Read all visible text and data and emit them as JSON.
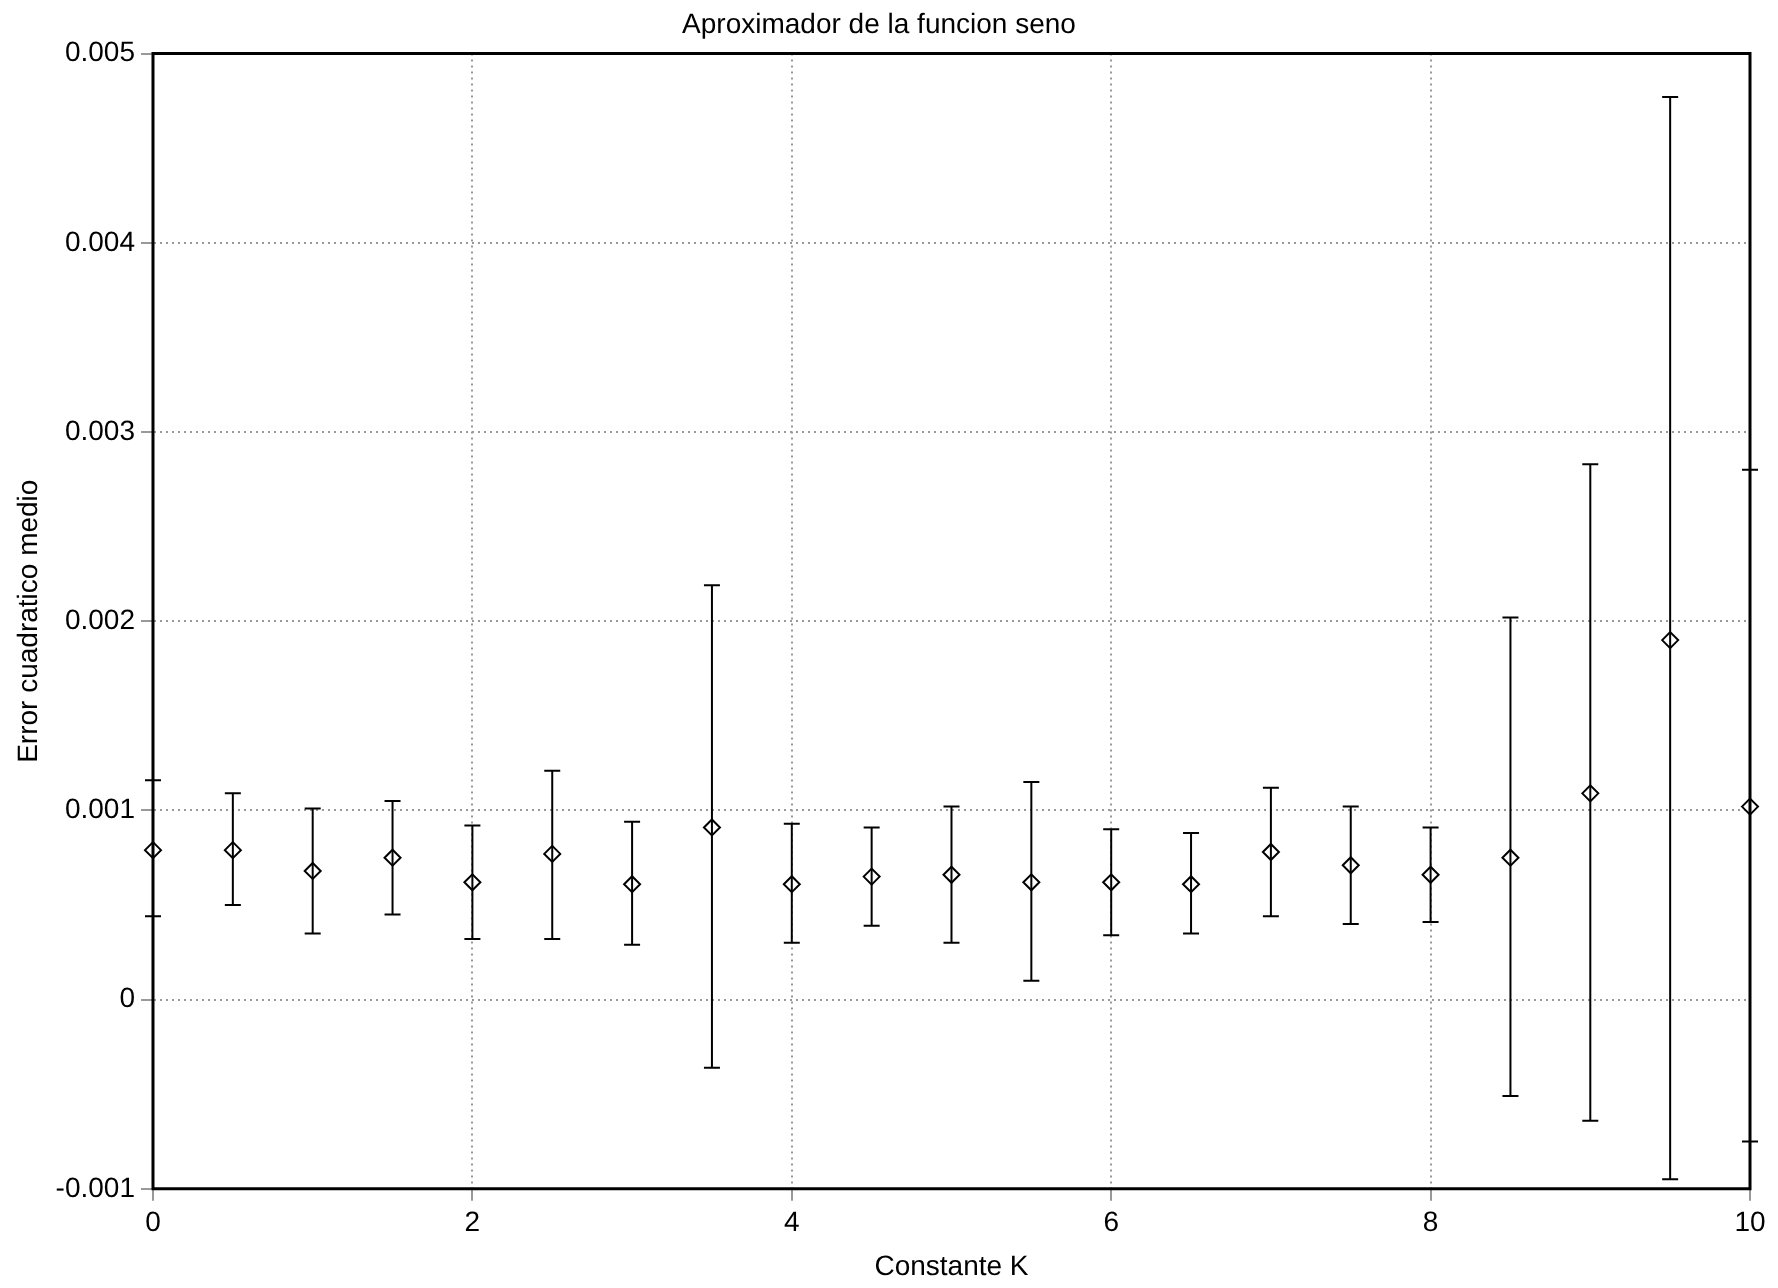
{
  "chart_data": {
    "type": "scatter",
    "title": "Aproximador de la funcion seno",
    "xlabel": "Constante K",
    "ylabel": "Error cuadratico medio",
    "x": [
      0,
      0.5,
      1,
      1.5,
      2,
      2.5,
      3,
      3.5,
      4,
      4.5,
      5,
      5.5,
      6,
      6.5,
      7,
      7.5,
      8,
      8.5,
      9,
      9.5,
      10
    ],
    "values": [
      0.00079,
      0.00079,
      0.00068,
      0.00075,
      0.00062,
      0.00077,
      0.00061,
      0.00091,
      0.00061,
      0.00065,
      0.00066,
      0.00062,
      0.00062,
      0.00061,
      0.00078,
      0.00071,
      0.00066,
      0.00075,
      0.00109,
      0.0019,
      0.00102
    ],
    "errors": [
      [
        0.00044,
        0.00116
      ],
      [
        0.0005,
        0.00109
      ],
      [
        0.00035,
        0.00101
      ],
      [
        0.00045,
        0.00105
      ],
      [
        0.00032,
        0.00092
      ],
      [
        0.00032,
        0.00121
      ],
      [
        0.00029,
        0.00094
      ],
      [
        -0.00036,
        0.00219
      ],
      [
        0.0003,
        0.00093
      ],
      [
        0.00039,
        0.00091
      ],
      [
        0.0003,
        0.00102
      ],
      [
        0.0001,
        0.00115
      ],
      [
        0.00034,
        0.0009
      ],
      [
        0.00035,
        0.00088
      ],
      [
        0.00044,
        0.00112
      ],
      [
        0.0004,
        0.00102
      ],
      [
        0.00041,
        0.00091
      ],
      [
        -0.00051,
        0.00202
      ],
      [
        -0.00064,
        0.00283
      ],
      [
        -0.00095,
        0.00477
      ],
      [
        -0.00075,
        0.0028
      ]
    ],
    "color": "#000000",
    "marker": "diamond",
    "grid": true,
    "xlim": [
      0,
      10
    ],
    "xticks": [
      0,
      2,
      4,
      6,
      8,
      10
    ],
    "ylim": [
      -0.001,
      0.005
    ],
    "yticks": [
      -0.001,
      0,
      0.001,
      0.002,
      0.003,
      0.004,
      0.005
    ]
  }
}
